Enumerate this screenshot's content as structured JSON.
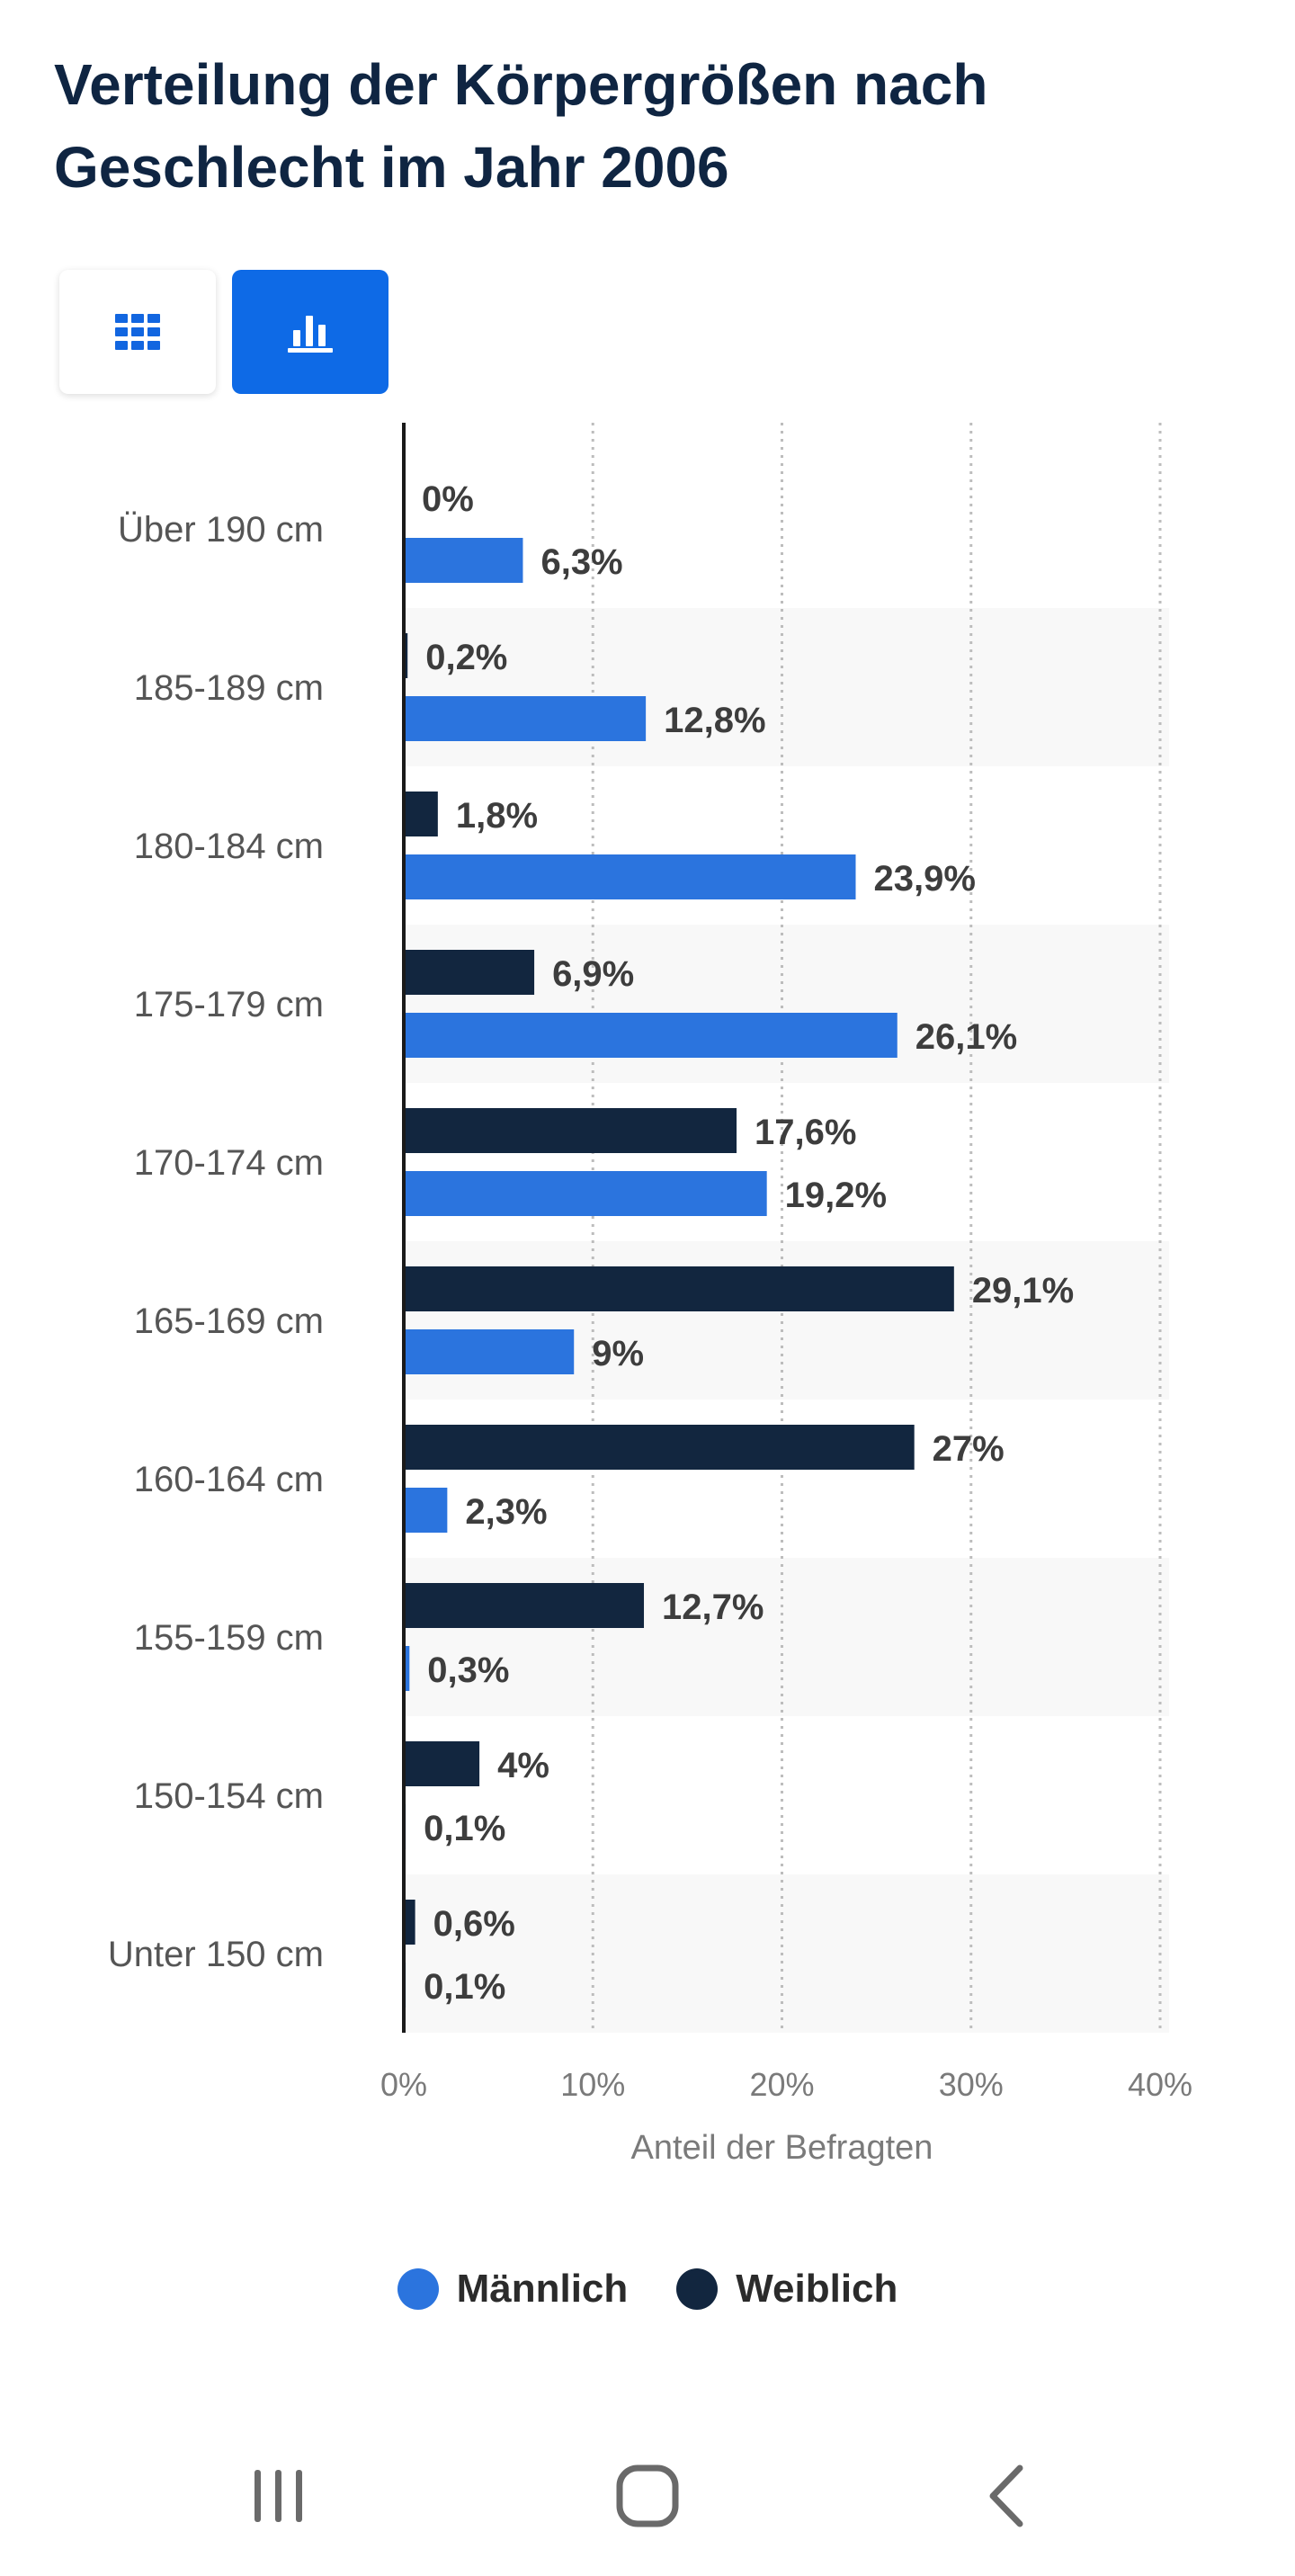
{
  "page": {
    "title": "Verteilung der Körpergrößen nach Geschlecht im Jahr 2006"
  },
  "view_toggle": {
    "table_icon": "grid-table-icon",
    "chart_icon": "bar-chart-icon",
    "active": "chart"
  },
  "colors": {
    "accent": "#0e6ae6",
    "maennlich": "#2b74de",
    "weiblich": "#12263f",
    "title": "#0f2542"
  },
  "chart_data": {
    "type": "bar",
    "orientation": "horizontal",
    "title": "Verteilung der Körpergrößen nach Geschlecht im Jahr 2006",
    "categories": [
      "Über 190 cm",
      "185-189 cm",
      "180-184 cm",
      "175-179 cm",
      "170-174 cm",
      "165-169 cm",
      "160-164 cm",
      "155-159 cm",
      "150-154 cm",
      "Unter 150 cm"
    ],
    "series": [
      {
        "name": "Weiblich",
        "color": "#12263f",
        "values": [
          0,
          0.2,
          1.8,
          6.9,
          17.6,
          29.1,
          27,
          12.7,
          4,
          0.6
        ],
        "labels": [
          "0%",
          "0,2%",
          "1,8%",
          "6,9%",
          "17,6%",
          "29,1%",
          "27%",
          "12,7%",
          "4%",
          "0,6%"
        ]
      },
      {
        "name": "Männlich",
        "color": "#2b74de",
        "values": [
          6.3,
          12.8,
          23.9,
          26.1,
          19.2,
          9,
          2.3,
          0.3,
          0.1,
          0.1
        ],
        "labels": [
          "6,3%",
          "12,8%",
          "23,9%",
          "26,1%",
          "19,2%",
          "9%",
          "2,3%",
          "0,3%",
          "0,1%",
          "0,1%"
        ]
      }
    ],
    "xlabel": "Anteil der Befragten",
    "ylabel": "",
    "xlim": [
      0,
      40
    ],
    "xticks": [
      0,
      10,
      20,
      30,
      40
    ],
    "xtick_labels": [
      "0%",
      "10%",
      "20%",
      "30%",
      "40%"
    ],
    "grid": "vertical dotted",
    "legend_position": "bottom",
    "legend": [
      "Männlich",
      "Weiblich"
    ]
  },
  "legend": {
    "items": [
      {
        "label": "Männlich",
        "color": "#2b74de"
      },
      {
        "label": "Weiblich",
        "color": "#12263f"
      }
    ]
  },
  "navbar": {
    "recent_icon": "recent-apps-icon",
    "home_icon": "home-icon",
    "back_icon": "back-icon"
  }
}
